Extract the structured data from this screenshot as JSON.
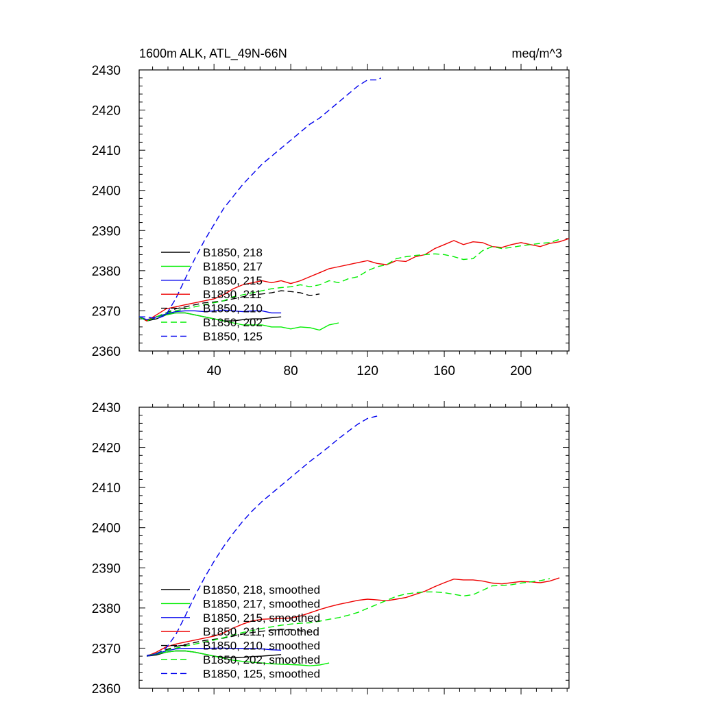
{
  "figure": {
    "title_left": "1600m ALK, ATL_49N-66N",
    "title_right": "meq/m^3"
  },
  "colors": {
    "black": "#000000",
    "green": "#00ee00",
    "blue": "#0000ee",
    "red": "#ee0000"
  },
  "chart_data": [
    {
      "type": "line",
      "xlim": [
        1,
        225
      ],
      "ylim": [
        2360,
        2430
      ],
      "x_ticks": [
        40,
        80,
        120,
        160,
        200
      ],
      "y_ticks": [
        2360,
        2370,
        2380,
        2390,
        2400,
        2410,
        2420,
        2430
      ],
      "show_x_tick_labels": true,
      "grid": false,
      "legend_placement": "lower-left",
      "series": [
        {
          "name": "B1850, 218",
          "color": "black",
          "dash": false,
          "x": [
            1,
            5,
            10,
            15,
            20,
            25,
            30,
            35,
            40,
            45,
            50,
            55,
            60,
            65,
            70,
            75
          ],
          "y": [
            2368.5,
            2367.5,
            2368.0,
            2369.0,
            2369.5,
            2369.5,
            2369.0,
            2368.5,
            2368.0,
            2367.5,
            2367.5,
            2367.8,
            2368.0,
            2368.0,
            2368.3,
            2368.5
          ]
        },
        {
          "name": "B1850, 217",
          "color": "green",
          "dash": false,
          "x": [
            1,
            5,
            10,
            15,
            20,
            25,
            30,
            35,
            40,
            45,
            50,
            55,
            60,
            65,
            70,
            75,
            80,
            85,
            90,
            95,
            100,
            105
          ],
          "y": [
            2368.5,
            2367.5,
            2368.5,
            2369.0,
            2369.5,
            2369.5,
            2369.0,
            2368.5,
            2368.0,
            2367.5,
            2367.0,
            2366.5,
            2366.5,
            2366.5,
            2366.0,
            2366.0,
            2365.5,
            2366.0,
            2365.8,
            2365.2,
            2366.5,
            2367.0
          ]
        },
        {
          "name": "B1850, 215",
          "color": "blue",
          "dash": false,
          "x": [
            1,
            5,
            10,
            15,
            20,
            25,
            30,
            35,
            40,
            45,
            50,
            55,
            60,
            65,
            70,
            75
          ],
          "y": [
            2368.5,
            2367.8,
            2368.5,
            2369.2,
            2369.8,
            2370.0,
            2370.0,
            2369.8,
            2370.0,
            2370.2,
            2370.0,
            2369.8,
            2370.0,
            2370.0,
            2369.5,
            2369.5
          ]
        },
        {
          "name": "B1850, 211",
          "color": "red",
          "dash": false,
          "x": [
            1,
            5,
            10,
            15,
            20,
            25,
            30,
            35,
            40,
            45,
            50,
            55,
            60,
            65,
            70,
            75,
            80,
            85,
            90,
            95,
            100,
            105,
            110,
            115,
            120,
            125,
            130,
            135,
            140,
            145,
            150,
            155,
            160,
            165,
            170,
            175,
            180,
            185,
            190,
            195,
            200,
            205,
            210,
            215,
            220,
            225
          ],
          "y": [
            2368.5,
            2367.5,
            2369.0,
            2370.5,
            2371.0,
            2371.5,
            2372.0,
            2372.5,
            2373.0,
            2374.0,
            2375.5,
            2376.5,
            2377.0,
            2377.5,
            2377.0,
            2377.5,
            2376.8,
            2377.5,
            2378.5,
            2379.5,
            2380.5,
            2381.0,
            2381.5,
            2382.0,
            2382.5,
            2381.8,
            2381.5,
            2382.5,
            2382.3,
            2383.5,
            2384.0,
            2385.5,
            2386.5,
            2387.5,
            2386.5,
            2387.2,
            2387.0,
            2386.0,
            2385.8,
            2386.5,
            2387.0,
            2386.5,
            2386.0,
            2386.8,
            2387.2,
            2388.0
          ]
        },
        {
          "name": "B1850, 210",
          "color": "black",
          "dash": true,
          "x": [
            1,
            5,
            10,
            15,
            20,
            25,
            30,
            35,
            40,
            45,
            50,
            55,
            60,
            65,
            70,
            75,
            80,
            85,
            90,
            95
          ],
          "y": [
            2368.5,
            2367.5,
            2368.5,
            2369.5,
            2370.5,
            2371.0,
            2371.5,
            2372.0,
            2372.2,
            2372.5,
            2373.0,
            2373.5,
            2374.0,
            2374.2,
            2374.5,
            2375.0,
            2374.8,
            2374.5,
            2373.8,
            2374.2
          ]
        },
        {
          "name": "B1850, 202",
          "color": "green",
          "dash": true,
          "x": [
            1,
            5,
            10,
            15,
            20,
            25,
            30,
            35,
            40,
            45,
            50,
            55,
            60,
            65,
            70,
            75,
            80,
            85,
            90,
            95,
            100,
            105,
            110,
            115,
            120,
            125,
            130,
            135,
            140,
            145,
            150,
            155,
            160,
            165,
            170,
            175,
            180,
            185,
            190,
            195,
            200,
            205,
            210,
            215,
            220
          ],
          "y": [
            2368.5,
            2367.5,
            2368.5,
            2369.5,
            2370.0,
            2370.5,
            2371.0,
            2371.5,
            2372.0,
            2372.5,
            2373.5,
            2374.0,
            2374.5,
            2375.0,
            2375.5,
            2375.8,
            2376.0,
            2376.5,
            2376.0,
            2376.5,
            2377.5,
            2377.0,
            2378.0,
            2378.5,
            2380.0,
            2381.0,
            2381.5,
            2383.0,
            2383.5,
            2383.8,
            2384.0,
            2384.2,
            2384.0,
            2383.5,
            2382.8,
            2383.0,
            2385.0,
            2386.0,
            2385.5,
            2385.8,
            2386.2,
            2386.5,
            2386.8,
            2387.0,
            2387.8
          ]
        },
        {
          "name": "B1850, 125",
          "color": "blue",
          "dash": true,
          "x": [
            1,
            5,
            10,
            15,
            20,
            25,
            30,
            35,
            40,
            45,
            50,
            55,
            60,
            65,
            70,
            75,
            80,
            85,
            90,
            95,
            100,
            105,
            110,
            115,
            120,
            125,
            127
          ],
          "y": [
            2368.5,
            2368.5,
            2368.0,
            2369.0,
            2373.0,
            2378.0,
            2383.0,
            2387.5,
            2391.5,
            2395.5,
            2398.5,
            2401.5,
            2404.0,
            2406.5,
            2408.5,
            2410.5,
            2412.5,
            2414.5,
            2416.5,
            2418.0,
            2420.0,
            2422.0,
            2424.0,
            2426.0,
            2427.5,
            2427.5,
            2428.0
          ]
        }
      ]
    },
    {
      "type": "line",
      "xlim": [
        1,
        225
      ],
      "ylim": [
        2360,
        2430
      ],
      "x_ticks": [
        40,
        80,
        120,
        160,
        200
      ],
      "y_ticks": [
        2360,
        2370,
        2380,
        2390,
        2400,
        2410,
        2420,
        2430
      ],
      "show_x_tick_labels": false,
      "grid": false,
      "legend_placement": "lower-left",
      "series": [
        {
          "name": "B1850, 218, smoothed",
          "color": "black",
          "dash": false,
          "x": [
            5,
            10,
            15,
            20,
            25,
            30,
            35,
            40,
            45,
            50,
            55,
            60,
            65,
            70,
            75
          ],
          "y": [
            2368.0,
            2368.3,
            2369.0,
            2369.3,
            2369.3,
            2369.0,
            2368.5,
            2368.0,
            2367.7,
            2367.6,
            2367.7,
            2367.9,
            2368.0,
            2368.2,
            2368.4
          ]
        },
        {
          "name": "B1850, 217, smoothed",
          "color": "green",
          "dash": false,
          "x": [
            5,
            10,
            15,
            20,
            25,
            30,
            35,
            40,
            45,
            50,
            55,
            60,
            65,
            70,
            75,
            80,
            85,
            90,
            95,
            100
          ],
          "y": [
            2368.0,
            2368.5,
            2369.0,
            2369.3,
            2369.3,
            2369.0,
            2368.5,
            2368.0,
            2367.5,
            2367.0,
            2366.7,
            2366.5,
            2366.3,
            2366.1,
            2366.0,
            2365.9,
            2365.8,
            2365.6,
            2365.8,
            2366.3
          ]
        },
        {
          "name": "B1850, 215, smoothed",
          "color": "blue",
          "dash": false,
          "x": [
            5,
            10,
            15,
            20,
            25,
            30,
            35,
            40,
            45,
            50,
            55,
            60,
            65,
            70,
            75
          ],
          "y": [
            2368.2,
            2368.6,
            2369.3,
            2369.8,
            2369.9,
            2369.9,
            2369.9,
            2370.0,
            2370.0,
            2369.9,
            2369.9,
            2369.9,
            2369.8,
            2369.6,
            2369.5
          ]
        },
        {
          "name": "B1850, 211, smoothed",
          "color": "red",
          "dash": false,
          "x": [
            5,
            10,
            15,
            20,
            25,
            30,
            35,
            40,
            45,
            50,
            55,
            60,
            65,
            70,
            75,
            80,
            85,
            90,
            95,
            100,
            105,
            110,
            115,
            120,
            125,
            130,
            135,
            140,
            145,
            150,
            155,
            160,
            165,
            170,
            175,
            180,
            185,
            190,
            195,
            200,
            205,
            210,
            215,
            220
          ],
          "y": [
            2368.0,
            2369.0,
            2370.3,
            2371.0,
            2371.5,
            2372.0,
            2372.5,
            2373.0,
            2373.8,
            2375.0,
            2376.0,
            2376.8,
            2377.2,
            2377.3,
            2377.4,
            2377.5,
            2378.0,
            2378.8,
            2379.6,
            2380.3,
            2380.9,
            2381.4,
            2381.9,
            2382.2,
            2382.0,
            2381.8,
            2382.2,
            2382.6,
            2383.4,
            2384.2,
            2385.3,
            2386.3,
            2387.2,
            2387.0,
            2387.0,
            2386.7,
            2386.2,
            2386.0,
            2386.3,
            2386.6,
            2386.5,
            2386.3,
            2386.7,
            2387.5
          ]
        },
        {
          "name": "B1850, 210, smoothed",
          "color": "black",
          "dash": true,
          "x": [
            5,
            10,
            15,
            20,
            25,
            30,
            35,
            40,
            45,
            50,
            55,
            60,
            65,
            70,
            75,
            80,
            85,
            90
          ],
          "y": [
            2368.0,
            2368.7,
            2369.6,
            2370.4,
            2370.9,
            2371.4,
            2371.9,
            2372.2,
            2372.5,
            2373.0,
            2373.5,
            2373.9,
            2374.2,
            2374.5,
            2374.7,
            2374.6,
            2374.3,
            2374.0
          ]
        },
        {
          "name": "B1850, 202, smoothed",
          "color": "green",
          "dash": true,
          "x": [
            5,
            10,
            15,
            20,
            25,
            30,
            35,
            40,
            45,
            50,
            55,
            60,
            65,
            70,
            75,
            80,
            85,
            90,
            95,
            100,
            105,
            110,
            115,
            120,
            125,
            130,
            135,
            140,
            145,
            150,
            155,
            160,
            165,
            170,
            175,
            180,
            185,
            190,
            195,
            200,
            205,
            210,
            215
          ],
          "y": [
            2368.0,
            2368.7,
            2369.4,
            2370.0,
            2370.5,
            2371.0,
            2371.5,
            2372.0,
            2372.6,
            2373.3,
            2373.9,
            2374.4,
            2374.9,
            2375.3,
            2375.7,
            2376.0,
            2376.2,
            2376.3,
            2376.7,
            2377.2,
            2377.6,
            2378.2,
            2378.9,
            2379.9,
            2380.9,
            2381.9,
            2382.9,
            2383.5,
            2383.8,
            2384.0,
            2384.0,
            2383.8,
            2383.4,
            2383.0,
            2383.3,
            2384.4,
            2385.5,
            2385.6,
            2385.8,
            2386.2,
            2386.5,
            2386.8,
            2387.3
          ]
        },
        {
          "name": "B1850, 125, smoothed",
          "color": "blue",
          "dash": true,
          "x": [
            5,
            10,
            15,
            20,
            25,
            30,
            35,
            40,
            45,
            50,
            55,
            60,
            65,
            70,
            75,
            80,
            85,
            90,
            95,
            100,
            105,
            110,
            115,
            120,
            125
          ],
          "y": [
            2368.0,
            2368.5,
            2370.0,
            2373.3,
            2378.0,
            2383.0,
            2387.5,
            2391.6,
            2395.3,
            2398.6,
            2401.6,
            2404.2,
            2406.5,
            2408.5,
            2410.5,
            2412.5,
            2414.5,
            2416.5,
            2418.3,
            2420.2,
            2422.2,
            2424.0,
            2425.8,
            2427.2,
            2427.8
          ]
        }
      ]
    }
  ]
}
